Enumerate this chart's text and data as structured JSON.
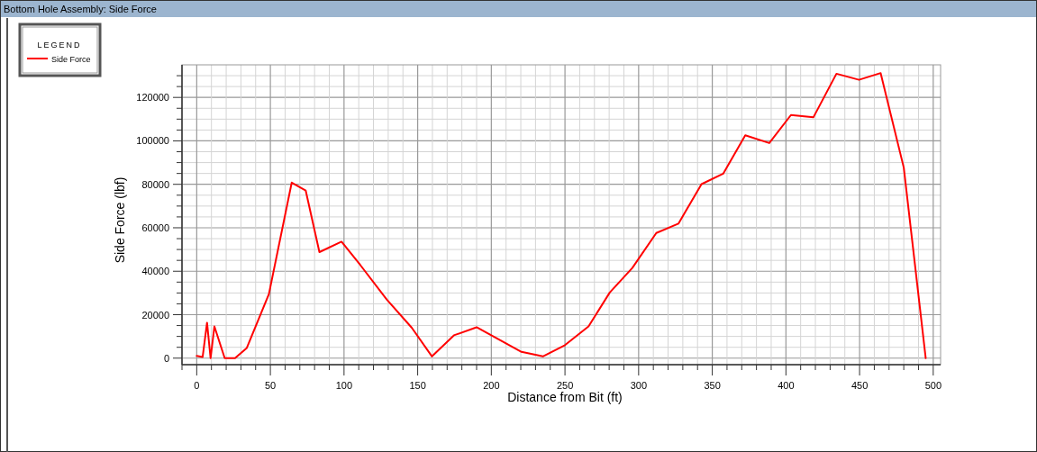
{
  "chart_data": {
    "type": "line",
    "title": "Bottom Hole Assembly: Side Force",
    "xlabel": "Distance from Bit (ft)",
    "ylabel": "Side Force (lbf)",
    "legend_title": "LEGEND",
    "legend": "top left",
    "grid": true,
    "marker": "none",
    "line_style": "solid",
    "xlim": [
      -10,
      505
    ],
    "ylim": [
      -3000,
      135000
    ],
    "xticks": [
      {
        "value": -10,
        "label": null
      },
      0,
      {
        "value": 10,
        "label": null
      },
      {
        "value": 20,
        "label": null
      },
      {
        "value": 30,
        "label": null
      },
      {
        "value": 40,
        "label": null
      },
      50,
      {
        "value": 60,
        "label": null
      },
      {
        "value": 70,
        "label": null
      },
      {
        "value": 80,
        "label": null
      },
      {
        "value": 90,
        "label": null
      },
      100,
      {
        "value": 110,
        "label": null
      },
      {
        "value": 120,
        "label": null
      },
      {
        "value": 130,
        "label": null
      },
      {
        "value": 140,
        "label": null
      },
      150,
      {
        "value": 160,
        "label": null
      },
      {
        "value": 170,
        "label": null
      },
      {
        "value": 180,
        "label": null
      },
      {
        "value": 190,
        "label": null
      },
      200,
      {
        "value": 210,
        "label": null
      },
      {
        "value": 220,
        "label": null
      },
      {
        "value": 230,
        "label": null
      },
      {
        "value": 240,
        "label": null
      },
      250,
      {
        "value": 260,
        "label": null
      },
      {
        "value": 270,
        "label": null
      },
      {
        "value": 280,
        "label": null
      },
      {
        "value": 290,
        "label": null
      },
      300,
      {
        "value": 310,
        "label": null
      },
      {
        "value": 320,
        "label": null
      },
      {
        "value": 330,
        "label": null
      },
      {
        "value": 340,
        "label": null
      },
      350,
      {
        "value": 360,
        "label": null
      },
      {
        "value": 370,
        "label": null
      },
      {
        "value": 380,
        "label": null
      },
      {
        "value": 390,
        "label": null
      },
      400,
      {
        "value": 410,
        "label": null
      },
      {
        "value": 420,
        "label": null
      },
      {
        "value": 430,
        "label": null
      },
      {
        "value": 440,
        "label": null
      },
      450,
      {
        "value": 460,
        "label": null
      },
      {
        "value": 470,
        "label": null
      },
      {
        "value": 480,
        "label": null
      },
      {
        "value": 490,
        "label": null
      },
      500
    ],
    "yticks": [
      0,
      {
        "value": 5000,
        "label": null
      },
      {
        "value": 10000,
        "label": null
      },
      {
        "value": 15000,
        "label": null
      },
      20000,
      {
        "value": 25000,
        "label": null
      },
      {
        "value": 30000,
        "label": null
      },
      {
        "value": 35000,
        "label": null
      },
      40000,
      {
        "value": 45000,
        "label": null
      },
      {
        "value": 50000,
        "label": null
      },
      {
        "value": 55000,
        "label": null
      },
      60000,
      {
        "value": 65000,
        "label": null
      },
      {
        "value": 70000,
        "label": null
      },
      {
        "value": 75000,
        "label": null
      },
      80000,
      {
        "value": 85000,
        "label": null
      },
      {
        "value": 90000,
        "label": null
      },
      {
        "value": 95000,
        "label": null
      },
      100000,
      {
        "value": 105000,
        "label": null
      },
      {
        "value": 110000,
        "label": null
      },
      {
        "value": 115000,
        "label": null
      },
      120000,
      {
        "value": 125000,
        "label": null
      },
      {
        "value": 130000,
        "label": null
      }
    ],
    "x": [
      0,
      4,
      7,
      9.4,
      12,
      19,
      26,
      34,
      49,
      64.5,
      74,
      83.3,
      98.3,
      111,
      129,
      146,
      159.7,
      174.6,
      190,
      220.5,
      235,
      250,
      266,
      280.4,
      295.7,
      312,
      327,
      342.7,
      357.4,
      372.4,
      388.7,
      403.4,
      418.7,
      434.3,
      449.6,
      464.3,
      480,
      494.9
    ],
    "series": [
      {
        "name": "Side Force",
        "color": "#ff0000",
        "values": [
          1000,
          500,
          16300,
          0,
          14600,
          0,
          0,
          4700,
          29500,
          80800,
          77100,
          48800,
          53600,
          42900,
          27000,
          14000,
          800,
          10500,
          14200,
          2900,
          800,
          6000,
          14600,
          30200,
          41500,
          57600,
          61900,
          80100,
          84900,
          102600,
          99000,
          111900,
          110900,
          130900,
          128100,
          131200,
          87700,
          0
        ]
      }
    ]
  }
}
